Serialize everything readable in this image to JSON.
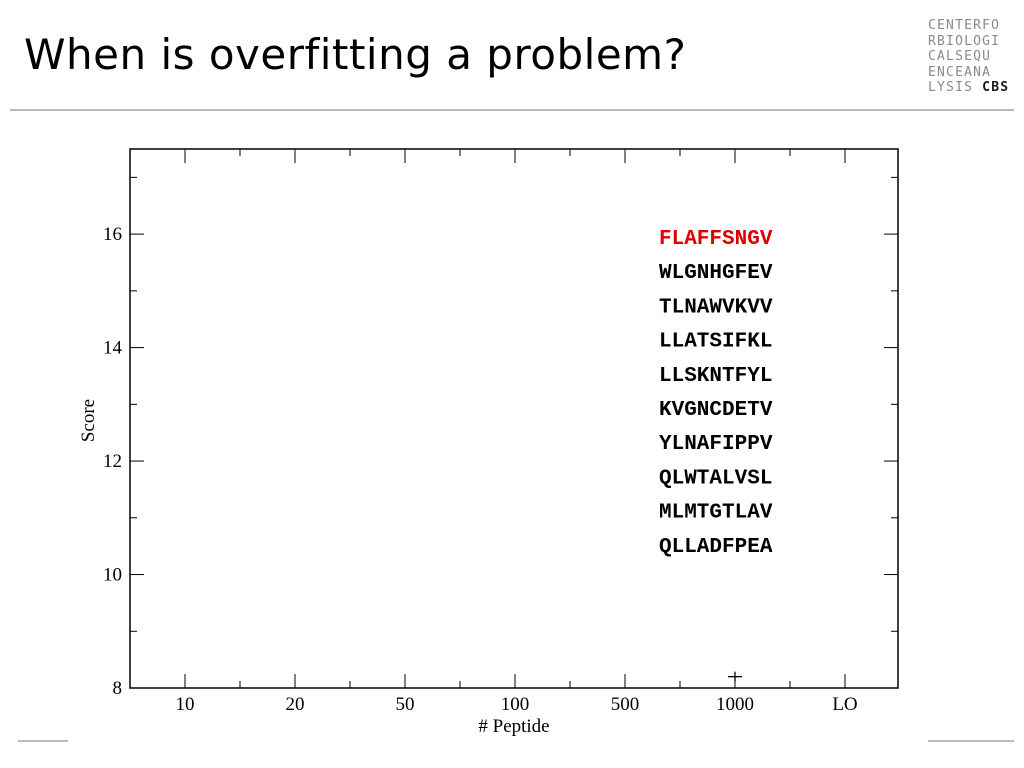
{
  "slide": {
    "title": "When is overfitting a problem?"
  },
  "logo": {
    "lines": [
      "CENTERFO",
      "RBIOLOGI",
      "CALSEQU",
      "ENCEANA",
      "LYSIS"
    ],
    "strong": "CBS",
    "strong_color": "#1a1a1a"
  },
  "chart_data": {
    "type": "scatter",
    "title": "",
    "xlabel": "# Peptide",
    "ylabel": "Score",
    "categories": [
      "10",
      "20",
      "50",
      "100",
      "500",
      "1000",
      "LO"
    ],
    "yticks": [
      8,
      10,
      12,
      14,
      16
    ],
    "ylim": [
      8,
      17.5
    ],
    "grid": false,
    "series": [
      {
        "points": [
          {
            "x": "1000",
            "y": 8.2
          }
        ]
      }
    ],
    "annotations": [
      {
        "text": "FLAFFSNGV",
        "color": "#dd0000"
      },
      {
        "text": "WLGNHGFEV",
        "color": "#000000"
      },
      {
        "text": "TLNAWVKVV",
        "color": "#000000"
      },
      {
        "text": "LLATSIFKL",
        "color": "#000000"
      },
      {
        "text": "LLSKNTFYL",
        "color": "#000000"
      },
      {
        "text": "KVGNCDETV",
        "color": "#000000"
      },
      {
        "text": "YLNAFIPPV",
        "color": "#000000"
      },
      {
        "text": "QLWTALVSL",
        "color": "#000000"
      },
      {
        "text": "MLMTGTLAV",
        "color": "#000000"
      },
      {
        "text": "QLLADFPEA",
        "color": "#000000"
      }
    ]
  }
}
